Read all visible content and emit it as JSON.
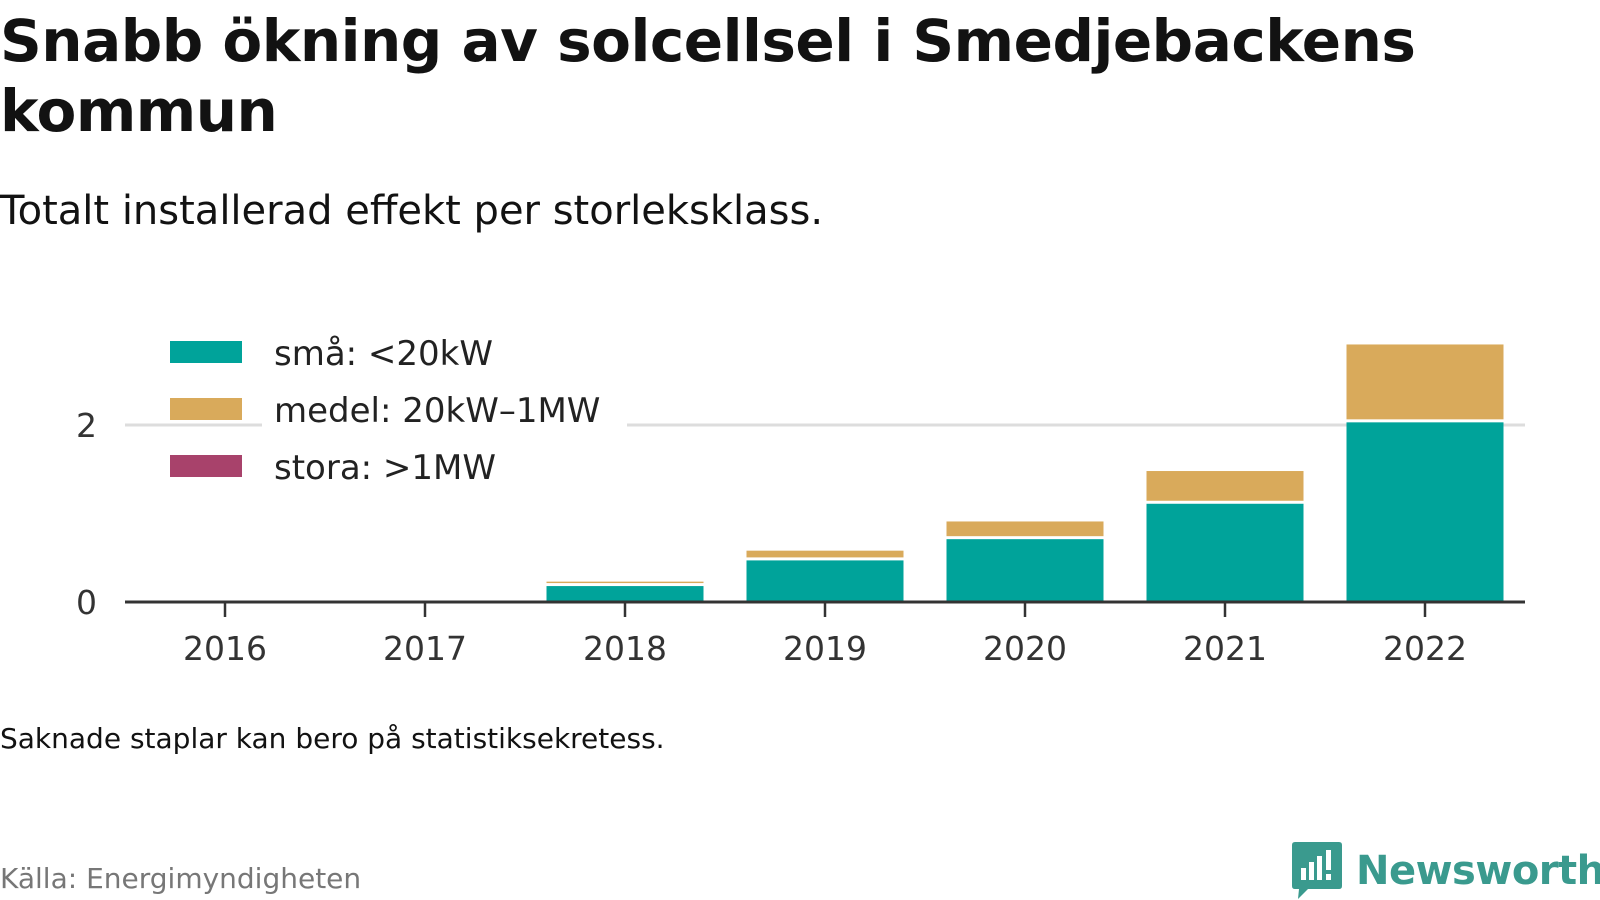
{
  "title": "Snabb ökning av solcellsel i Smedjebackens kommun",
  "subtitle": "Totalt installerad effekt per storleksklass.",
  "note": "Saknade staplar kan bero på statistiksekretess.",
  "source": "Källa: Energimyndigheten",
  "brand": {
    "name": "Newsworthy",
    "logo_icon": "newsworthy-chart-bubble-icon",
    "color": "#3a9a8e"
  },
  "colors": {
    "sma": "#00a39a",
    "medel": "#d9aa5b",
    "stora": "#a8426b",
    "axis": "#333333",
    "grid": "#dddddd"
  },
  "chart_data": {
    "type": "bar",
    "stacked": true,
    "categories": [
      "2016",
      "2017",
      "2018",
      "2019",
      "2020",
      "2021",
      "2022"
    ],
    "series": [
      {
        "name": "små: <20kW",
        "color": "#00a39a",
        "values": [
          0,
          0,
          0.18,
          0.47,
          0.71,
          1.11,
          2.03
        ]
      },
      {
        "name": "medel: 20kW–1MW",
        "color": "#d9aa5b",
        "values": [
          0,
          0,
          0.05,
          0.11,
          0.2,
          0.37,
          0.88
        ]
      },
      {
        "name": "stora: >1MW",
        "color": "#a8426b",
        "values": [
          0,
          0,
          0,
          0,
          0,
          0,
          0
        ]
      }
    ],
    "yticks": [
      {
        "value": 0,
        "label": "0"
      },
      {
        "value": 2,
        "label": "2"
      }
    ],
    "ylim": [
      0,
      3
    ],
    "xlabel": "",
    "ylabel": "",
    "grid": true,
    "legend_position": "top-left"
  }
}
